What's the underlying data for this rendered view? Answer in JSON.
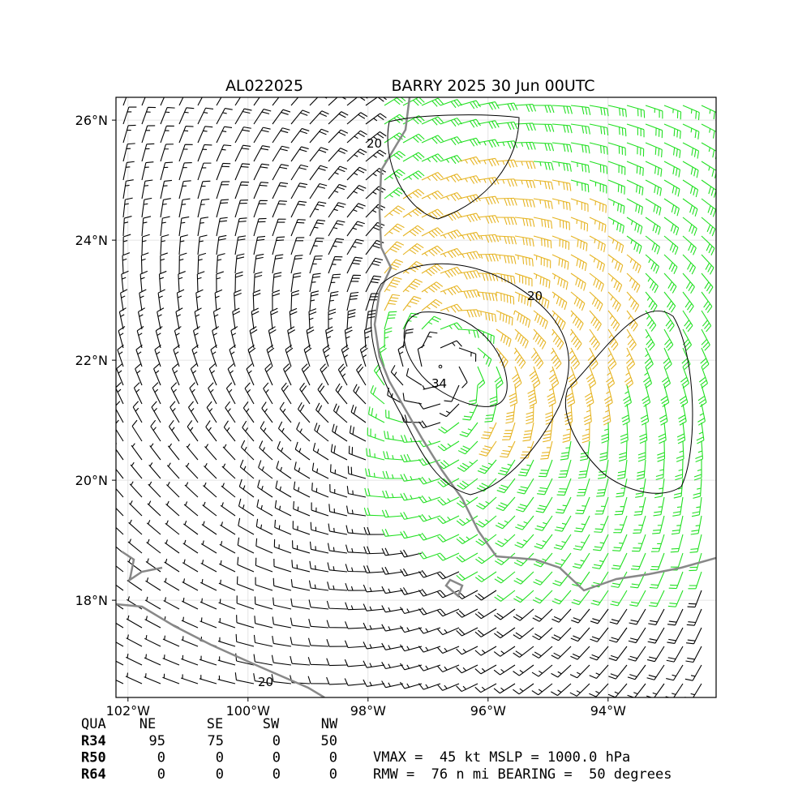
{
  "map": {
    "title_left": "AL022025",
    "title_right": "BARRY 2025 30 Jun 00UTC",
    "xlim": [
      -102.2,
      -92.2
    ],
    "ylim": [
      16.38,
      26.38
    ],
    "xticks": [
      {
        "value": -102,
        "label": "102°W"
      },
      {
        "value": -100,
        "label": "100°W"
      },
      {
        "value": -98,
        "label": "98°W"
      },
      {
        "value": -96,
        "label": "96°W"
      },
      {
        "value": -94,
        "label": "94°W"
      }
    ],
    "yticks": [
      {
        "value": 26,
        "label": "26°N"
      },
      {
        "value": 24,
        "label": "24°N"
      },
      {
        "value": 22,
        "label": "22°N"
      },
      {
        "value": 20,
        "label": "20°N"
      },
      {
        "value": 18,
        "label": "18°N"
      }
    ],
    "contour_labels": [
      "20",
      "20",
      "34",
      "20"
    ]
  },
  "table": {
    "header": [
      "QUA",
      "NE",
      "SE",
      "SW",
      "NW"
    ],
    "rows": [
      [
        "R34",
        95,
        75,
        0,
        50
      ],
      [
        "R50",
        0,
        0,
        0,
        0
      ],
      [
        "R64",
        0,
        0,
        0,
        0
      ]
    ]
  },
  "info": [
    "VMAX =  45 kt MSLP = 1000.0 hPa",
    "RMW =  76 n mi BEARING =  50 degrees"
  ]
}
